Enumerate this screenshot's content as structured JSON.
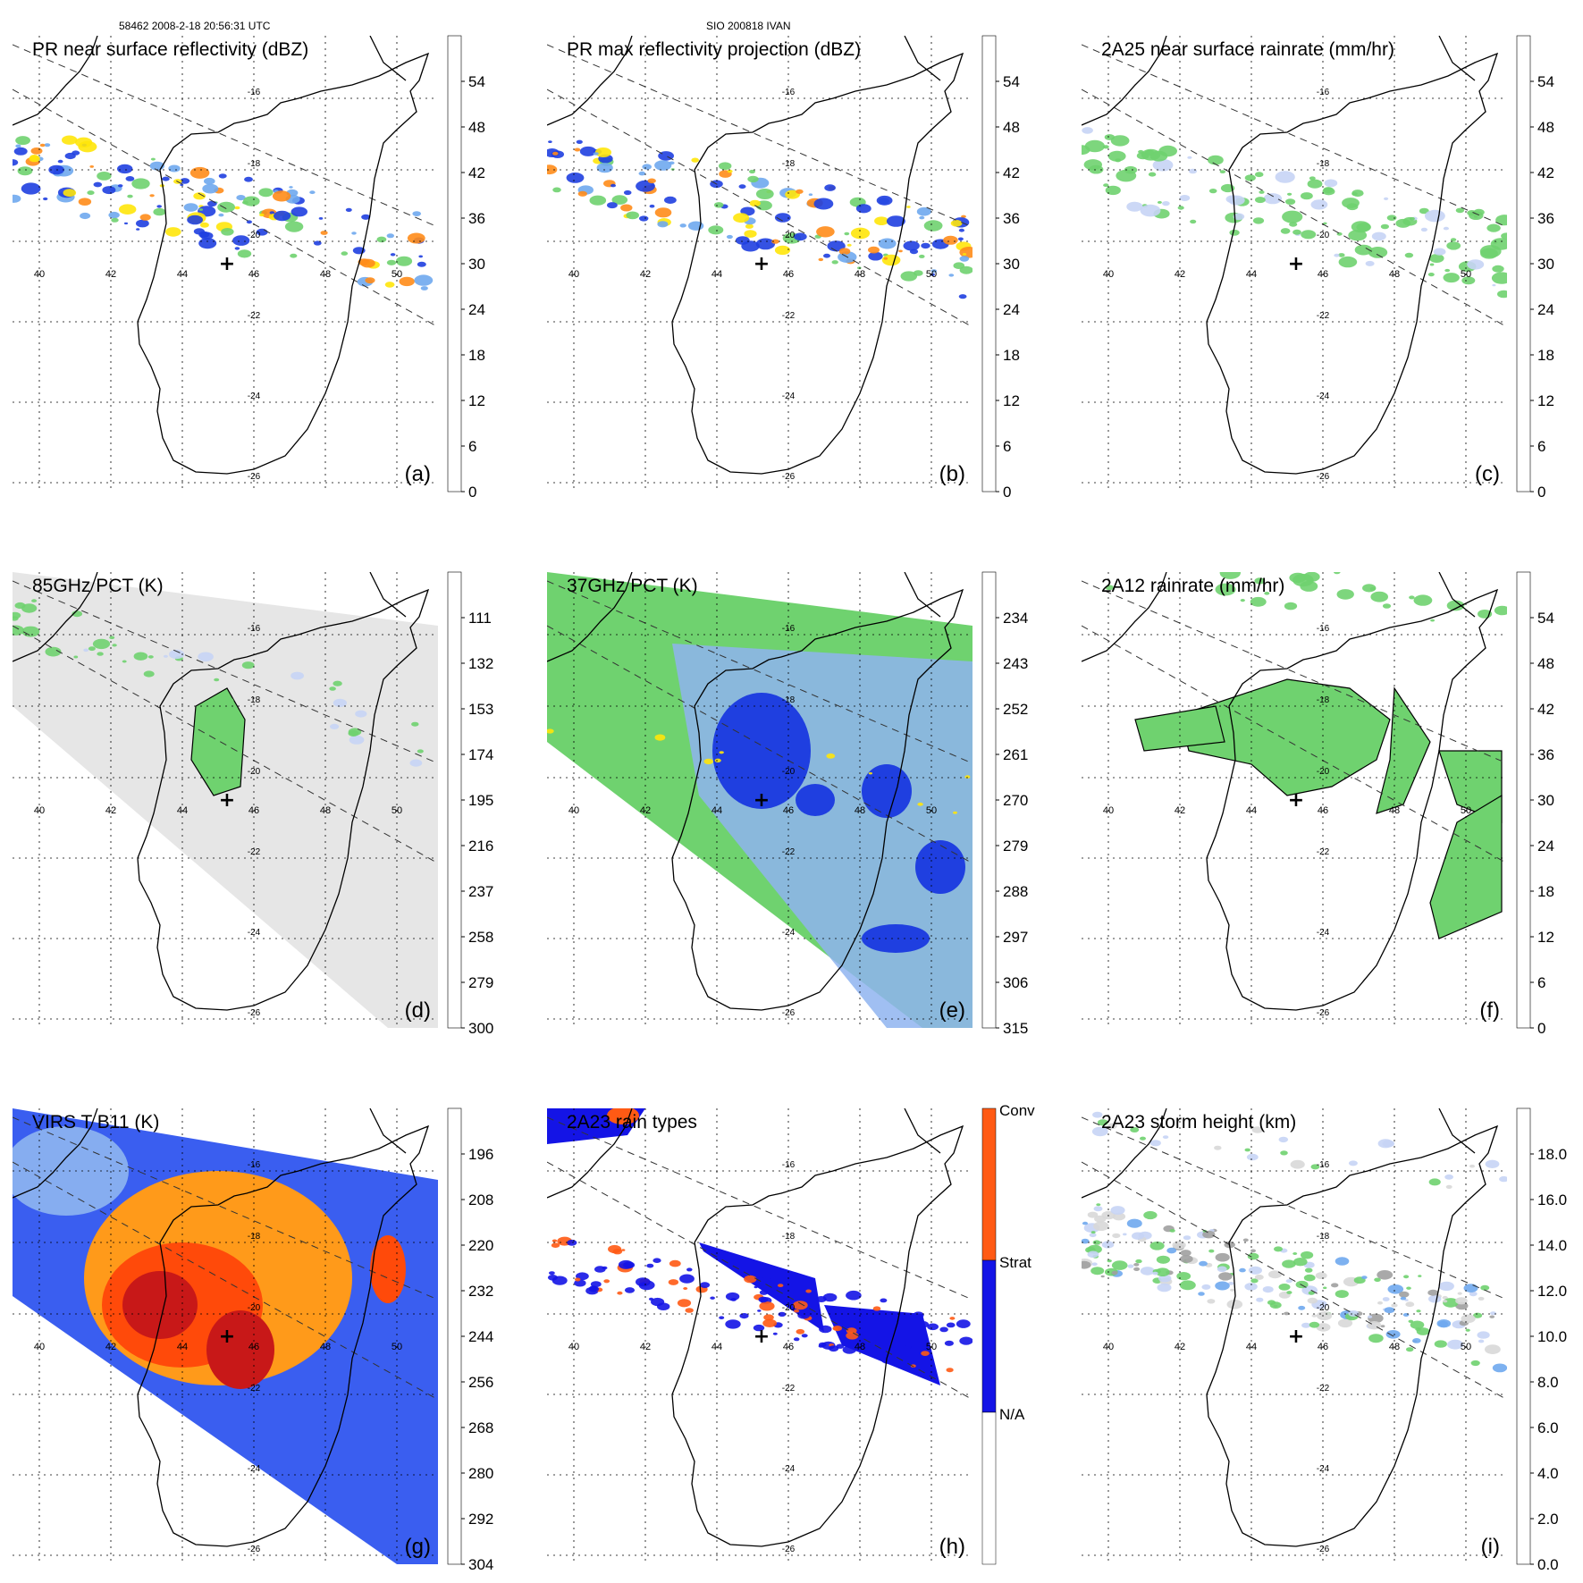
{
  "header": {
    "left": "58462 2008-2-18 20:56:31 UTC",
    "center": "SIO 200818 IVAN"
  },
  "map": {
    "lon_ticks": [
      "40",
      "42",
      "44",
      "46",
      "48",
      "50"
    ],
    "lat_ticks": [
      "-16",
      "-18",
      "-20",
      "-22",
      "-24",
      "-26"
    ],
    "marker": "+"
  },
  "panels": [
    {
      "title": "PR near surface reflectivity (dBZ)",
      "label": "(a)",
      "colorbar": [
        "54",
        "48",
        "42",
        "36",
        "30",
        "24",
        "18",
        "12",
        "6",
        "0"
      ],
      "field": "reflectivity"
    },
    {
      "title": "PR max reflectivity projection (dBZ)",
      "label": "(b)",
      "colorbar": [
        "54",
        "48",
        "42",
        "36",
        "30",
        "24",
        "18",
        "12",
        "6",
        "0"
      ],
      "field": "reflectivity"
    },
    {
      "title": "2A25 near surface rainrate (mm/hr)",
      "label": "(c)",
      "colorbar": [
        "54",
        "48",
        "42",
        "36",
        "30",
        "24",
        "18",
        "12",
        "6",
        "0"
      ],
      "field": "rainrate"
    },
    {
      "title": "85GHz PCT (K)",
      "label": "(d)",
      "colorbar": [
        "111",
        "132",
        "153",
        "174",
        "195",
        "216",
        "237",
        "258",
        "279",
        "300"
      ],
      "field": "pct85"
    },
    {
      "title": "37GHz PCT (K)",
      "label": "(e)",
      "colorbar": [
        "234",
        "243",
        "252",
        "261",
        "270",
        "279",
        "288",
        "297",
        "306",
        "315"
      ],
      "field": "pct37"
    },
    {
      "title": "2A12 rainrate (mm/hr)",
      "label": "(f)",
      "colorbar": [
        "54",
        "48",
        "42",
        "36",
        "30",
        "24",
        "18",
        "12",
        "6",
        "0"
      ],
      "field": "rainrate12"
    },
    {
      "title": "VIRS T B11 (K)",
      "label": "(g)",
      "colorbar": [
        "196",
        "208",
        "220",
        "232",
        "244",
        "256",
        "268",
        "280",
        "292",
        "304"
      ],
      "field": "virs"
    },
    {
      "title": "2A23 rain types",
      "label": "(h)",
      "colorbar": [
        "Conv",
        "Strat",
        "N/A"
      ],
      "field": "raintype"
    },
    {
      "title": "2A23 storm height (km)",
      "label": "(i)",
      "colorbar": [
        "18.0",
        "16.0",
        "14.0",
        "12.0",
        "10.0",
        "8.0",
        "6.0",
        "4.0",
        "2.0",
        "0.0"
      ],
      "field": "height"
    }
  ],
  "colors": {
    "accent_blue": "#1f3fe0",
    "convective": "#ff5a14",
    "stratiform": "#1414e6",
    "green": "#7fd77f"
  }
}
